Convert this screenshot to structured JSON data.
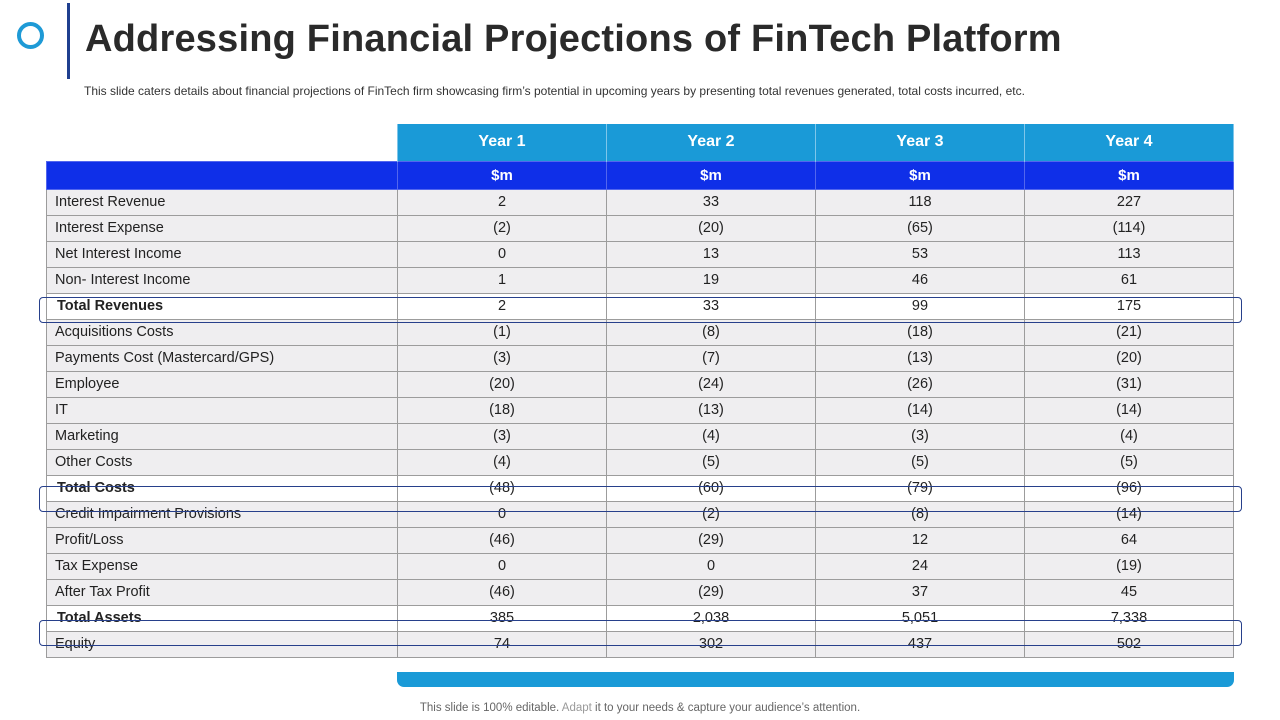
{
  "header": {
    "title": "Addressing Financial Projections of FinTech Platform",
    "subtitle": "This slide caters details about financial projections of FinTech firm showcasing firm’s potential in upcoming years by presenting total revenues  generated,  total costs incurred, etc."
  },
  "table": {
    "years": [
      "Year 1",
      "Year 2",
      "Year 3",
      "Year 4"
    ],
    "units": [
      "$m",
      "$m",
      "$m",
      "$m"
    ],
    "rows": [
      {
        "label": "Interest Revenue",
        "values": [
          "2",
          "33",
          "118",
          "227"
        ]
      },
      {
        "label": "Interest  Expense",
        "values": [
          "(2)",
          "(20)",
          "(65)",
          "(114)"
        ]
      },
      {
        "label": "Net Interest Income",
        "values": [
          "0",
          "13",
          "53",
          "113"
        ]
      },
      {
        "label": "Non- Interest Income",
        "values": [
          "1",
          "19",
          "46",
          "61"
        ]
      },
      {
        "label": "Total Revenues",
        "values": [
          "2",
          "33",
          "99",
          "175"
        ]
      },
      {
        "label": "Acquisitions Costs",
        "values": [
          "(1)",
          "(8)",
          "(18)",
          "(21)"
        ]
      },
      {
        "label": "Payments Cost (Mastercard/GPS)",
        "values": [
          "(3)",
          "(7)",
          "(13)",
          "(20)"
        ]
      },
      {
        "label": "Employee",
        "values": [
          "(20)",
          "(24)",
          "(26)",
          "(31)"
        ]
      },
      {
        "label": "IT",
        "values": [
          "(18)",
          "(13)",
          "(14)",
          "(14)"
        ]
      },
      {
        "label": "Marketing",
        "values": [
          "(3)",
          "(4)",
          "(3)",
          "(4)"
        ]
      },
      {
        "label": "Other Costs",
        "values": [
          "(4)",
          "(5)",
          "(5)",
          "(5)"
        ]
      },
      {
        "label": "Total Costs",
        "values": [
          "(48)",
          "(60)",
          "(79)",
          "(96)"
        ]
      },
      {
        "label": "Credit Impairment Provisions",
        "values": [
          "0",
          "(2)",
          "(8)",
          "(14)"
        ]
      },
      {
        "label": "Profit/Loss",
        "values": [
          "(46)",
          "(29)",
          "12",
          "64"
        ]
      },
      {
        "label": "Tax Expense",
        "values": [
          "0",
          "0",
          "24",
          "(19)"
        ]
      },
      {
        "label": "After Tax Profit",
        "values": [
          "(46)",
          "(29)",
          "37",
          "45"
        ]
      },
      {
        "label": "Total Assets",
        "values": [
          "385",
          "2,038",
          "5,051",
          "7,338"
        ]
      },
      {
        "label": "Equity",
        "values": [
          "74",
          "302",
          "437",
          "502"
        ]
      }
    ]
  },
  "footer": {
    "part1": "This slide is 100% editable. ",
    "part2": "Adapt",
    "part3": " it to your needs & capture your audience’s attention."
  },
  "colors": {
    "accent": "#1a9ad7",
    "units_header": "#0f2fe8",
    "title_bar": "#1f3f8f"
  }
}
